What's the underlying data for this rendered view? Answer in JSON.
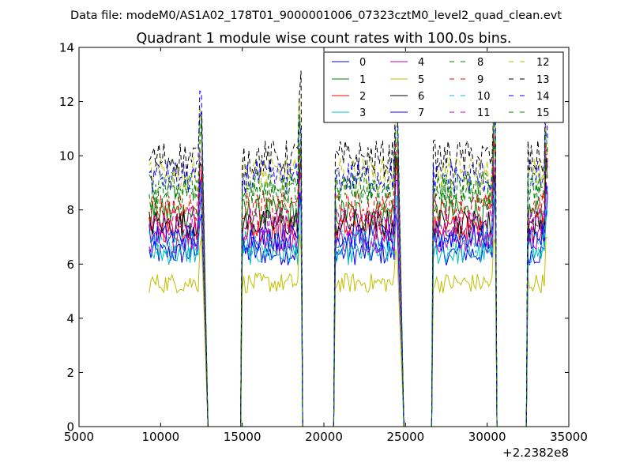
{
  "chart_data": {
    "type": "line",
    "suptitle": "Data file: modeM0/AS1A02_178T01_9000001006_07323cztM0_level2_quad_clean.evt",
    "title": "Quadrant 1 module wise count rates with 100.0s bins.",
    "xlabel": "",
    "ylabel": "",
    "x_offset_label": "+2.2382e8",
    "xlim": [
      5000,
      35000
    ],
    "ylim": [
      0,
      14
    ],
    "xticks": [
      5000,
      10000,
      15000,
      20000,
      25000,
      30000,
      35000
    ],
    "xtick_labels": [
      "5000",
      "10000",
      "15000",
      "20000",
      "25000",
      "30000",
      "35000"
    ],
    "yticks": [
      0,
      2,
      4,
      6,
      8,
      10,
      12,
      14
    ],
    "ytick_labels": [
      "0",
      "2",
      "4",
      "6",
      "8",
      "10",
      "12",
      "14"
    ],
    "grid": false,
    "legend_position": "top-right",
    "legend_columns": 4,
    "bin_size": 100,
    "segments": [
      {
        "start": 9300,
        "end": 12500,
        "drop_end": 12900,
        "level": 1.0
      },
      {
        "start": 15000,
        "end": 18600,
        "drop_end": 18700,
        "level": 1.0
      },
      {
        "start": 20700,
        "end": 24500,
        "drop_end": 24900,
        "level": 1.0
      },
      {
        "start": 26700,
        "end": 30500,
        "drop_end": 30600,
        "level": 1.0
      },
      {
        "start": 32500,
        "end": 33700,
        "drop_end": 33700,
        "level": 1.0
      }
    ],
    "series": [
      {
        "name": "0",
        "color": "#0000ff",
        "style": "solid",
        "mean": 6.4
      },
      {
        "name": "1",
        "color": "#008000",
        "style": "solid",
        "mean": 7.9
      },
      {
        "name": "2",
        "color": "#ff0000",
        "style": "solid",
        "mean": 7.3
      },
      {
        "name": "3",
        "color": "#00bfbf",
        "style": "solid",
        "mean": 6.4
      },
      {
        "name": "4",
        "color": "#bf00bf",
        "style": "solid",
        "mean": 6.9
      },
      {
        "name": "5",
        "color": "#bfbf00",
        "style": "solid",
        "mean": 5.3
      },
      {
        "name": "6",
        "color": "#000000",
        "style": "solid",
        "mean": 7.5
      },
      {
        "name": "7",
        "color": "#0000ff",
        "style": "solid",
        "mean": 7.0
      },
      {
        "name": "8",
        "color": "#008000",
        "style": "dashed",
        "mean": 8.6
      },
      {
        "name": "9",
        "color": "#ff0000",
        "style": "dashed",
        "mean": 8.1
      },
      {
        "name": "10",
        "color": "#00bfbf",
        "style": "dashed",
        "mean": 6.8
      },
      {
        "name": "11",
        "color": "#bf00bf",
        "style": "dashed",
        "mean": 7.6
      },
      {
        "name": "12",
        "color": "#bfbf00",
        "style": "dashed",
        "mean": 9.3
      },
      {
        "name": "13",
        "color": "#000000",
        "style": "dashed",
        "mean": 9.9
      },
      {
        "name": "14",
        "color": "#0000ff",
        "style": "dashed",
        "mean": 9.2
      },
      {
        "name": "15",
        "color": "#008000",
        "style": "dashed",
        "mean": 8.8
      }
    ]
  }
}
